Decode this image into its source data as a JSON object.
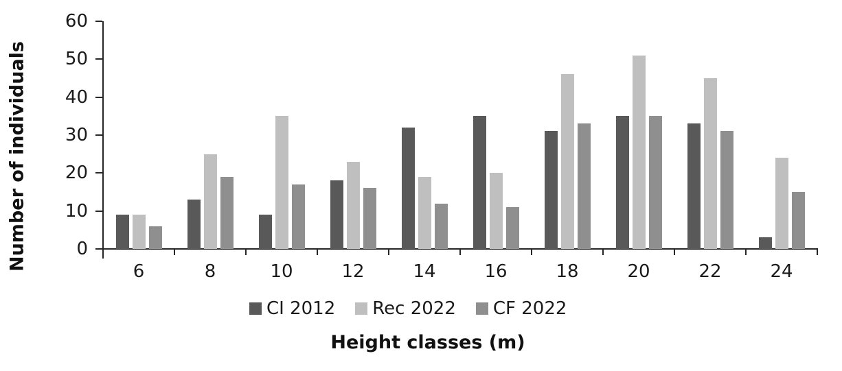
{
  "chart_data": {
    "type": "bar",
    "title": "",
    "xlabel": "Height classes (m)",
    "ylabel": "Number of individuals",
    "categories": [
      "6",
      "8",
      "10",
      "12",
      "14",
      "16",
      "18",
      "20",
      "22",
      "24"
    ],
    "series": [
      {
        "name": "CI 2012",
        "color": "#595959",
        "values": [
          9,
          13,
          9,
          18,
          32,
          35,
          31,
          35,
          33,
          3
        ]
      },
      {
        "name": "Rec 2022",
        "color": "#bfbfbf",
        "values": [
          9,
          25,
          35,
          23,
          19,
          20,
          46,
          51,
          45,
          24
        ]
      },
      {
        "name": "CF 2022",
        "color": "#8f8f8f",
        "values": [
          6,
          19,
          17,
          16,
          12,
          11,
          33,
          35,
          31,
          15
        ]
      }
    ],
    "ylim": [
      0,
      60
    ],
    "yticks": [
      0,
      10,
      20,
      30,
      40,
      50,
      60
    ],
    "grid": false,
    "legend_position": "bottom",
    "axis_color": "#262626",
    "background": "#ffffff"
  }
}
